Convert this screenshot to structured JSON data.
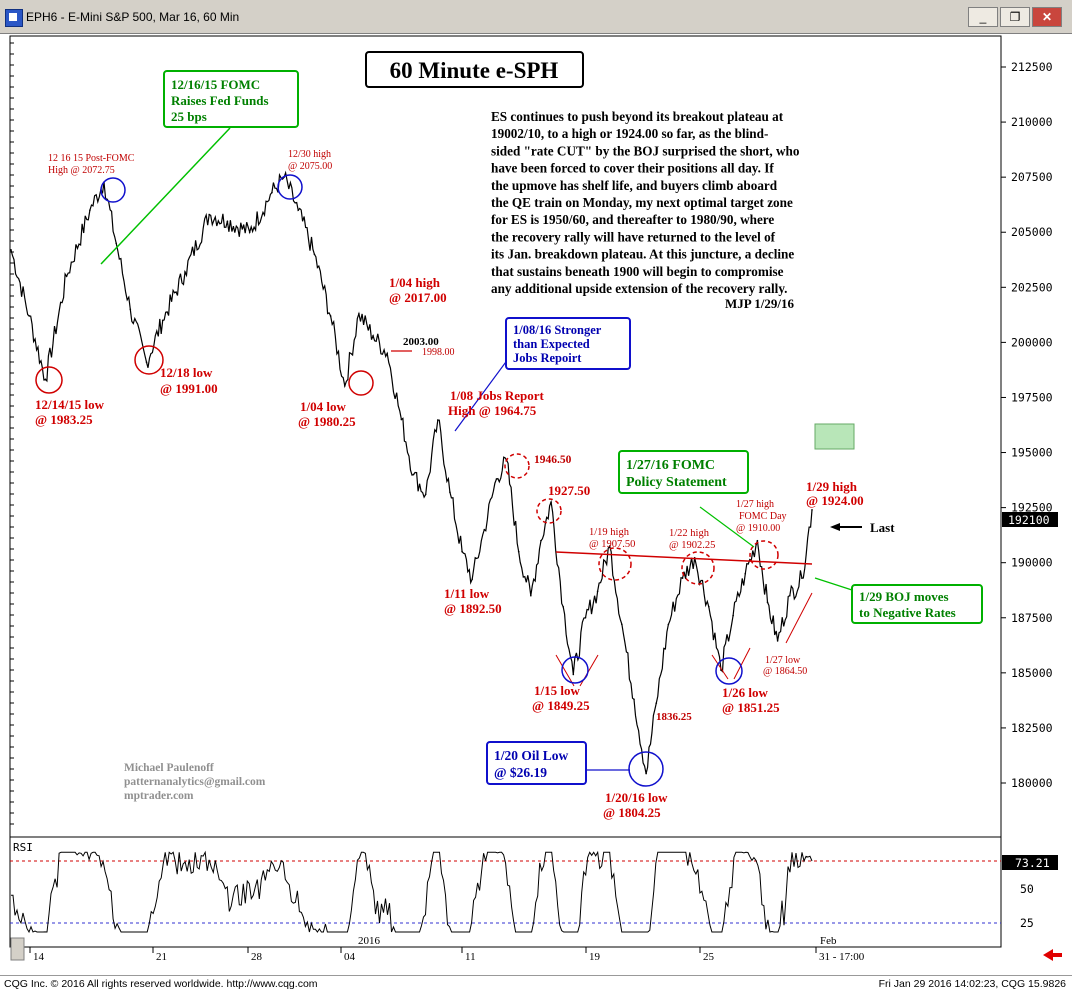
{
  "window": {
    "title": "EPH6 - E-Mini S&P 500, Mar 16, 60 Min",
    "min_symbol": "_",
    "restore_symbol": "❐",
    "close_symbol": "✕"
  },
  "chart_data": {
    "type": "line",
    "title": "60 Minute e-SPH",
    "commentary": [
      "ES continues to push beyond its breakout plateau at",
      "19002/10, to a high or 1924.00 so far, as the blind-",
      "sided \"rate CUT\" by the BOJ surprised the short, who",
      "have been forced to cover their positions all day. If",
      "the upmove has shelf life, and buyers climb aboard",
      "the QE train on Monday, my next optimal target zone",
      "for ES is 1950/60, and thereafter to 1980/90, where",
      "the recovery rally will have returned to the level of",
      "its Jan. breakdown plateau.  At this juncture, a decline",
      "that sustains beneath 1900 will begin to compromise",
      "any additional upside extension of the recovery rally."
    ],
    "signature": "MJP 1/29/16",
    "author": [
      "Michael Paulenoff",
      "patternanalytics@gmail.com",
      "mptrader.com"
    ],
    "price_axis": {
      "labels": [
        "212500",
        "210000",
        "207500",
        "205000",
        "202500",
        "200000",
        "197500",
        "195000",
        "192500",
        "190000",
        "187500",
        "185000",
        "182500",
        "180000"
      ],
      "values": [
        2125,
        2100,
        2075,
        2050,
        2025,
        2000,
        1975,
        1950,
        1925,
        1900,
        1875,
        1850,
        1825,
        1800
      ],
      "ylim": [
        1780,
        2140
      ],
      "last_price": "192100",
      "last_value": 1921
    },
    "date_axis": {
      "ticks": [
        "14",
        "21",
        "28",
        "04",
        "11",
        "19",
        "25",
        "31 - 17:00"
      ],
      "year_label": "2016",
      "month_label": "Feb"
    },
    "key_points": [
      {
        "t": 0,
        "v": 2042
      },
      {
        "t": 18,
        "v": 2012
      },
      {
        "t": 34,
        "v": 1983.25
      },
      {
        "t": 55,
        "v": 2030
      },
      {
        "t": 78,
        "v": 2060
      },
      {
        "t": 92,
        "v": 2072.75
      },
      {
        "t": 104,
        "v": 2045
      },
      {
        "t": 118,
        "v": 2015
      },
      {
        "t": 134,
        "v": 1991
      },
      {
        "t": 150,
        "v": 2010
      },
      {
        "t": 172,
        "v": 2032
      },
      {
        "t": 196,
        "v": 2058
      },
      {
        "t": 214,
        "v": 2055
      },
      {
        "t": 236,
        "v": 2050
      },
      {
        "t": 258,
        "v": 2068
      },
      {
        "t": 270,
        "v": 2075
      },
      {
        "t": 284,
        "v": 2060
      },
      {
        "t": 300,
        "v": 2040
      },
      {
        "t": 316,
        "v": 2012
      },
      {
        "t": 330,
        "v": 1980.25
      },
      {
        "t": 344,
        "v": 2013
      },
      {
        "t": 358,
        "v": 2003
      },
      {
        "t": 372,
        "v": 1995
      },
      {
        "t": 386,
        "v": 1965
      },
      {
        "t": 398,
        "v": 1940
      },
      {
        "t": 410,
        "v": 1931
      },
      {
        "t": 422,
        "v": 1964.75
      },
      {
        "t": 434,
        "v": 1932
      },
      {
        "t": 446,
        "v": 1905
      },
      {
        "t": 456,
        "v": 1892.5
      },
      {
        "t": 468,
        "v": 1915
      },
      {
        "t": 480,
        "v": 1938
      },
      {
        "t": 490,
        "v": 1946.5
      },
      {
        "t": 502,
        "v": 1905
      },
      {
        "t": 514,
        "v": 1885
      },
      {
        "t": 524,
        "v": 1910
      },
      {
        "t": 534,
        "v": 1927.5
      },
      {
        "t": 546,
        "v": 1880
      },
      {
        "t": 556,
        "v": 1849.25
      },
      {
        "t": 568,
        "v": 1875
      },
      {
        "t": 580,
        "v": 1887
      },
      {
        "t": 592,
        "v": 1907.5
      },
      {
        "t": 604,
        "v": 1872
      },
      {
        "t": 616,
        "v": 1838
      },
      {
        "t": 628,
        "v": 1804.25
      },
      {
        "t": 638,
        "v": 1836.25
      },
      {
        "t": 650,
        "v": 1872
      },
      {
        "t": 664,
        "v": 1893
      },
      {
        "t": 676,
        "v": 1902.25
      },
      {
        "t": 690,
        "v": 1880
      },
      {
        "t": 702,
        "v": 1851.25
      },
      {
        "t": 714,
        "v": 1876
      },
      {
        "t": 726,
        "v": 1895
      },
      {
        "t": 738,
        "v": 1910
      },
      {
        "t": 748,
        "v": 1882
      },
      {
        "t": 758,
        "v": 1864.5
      },
      {
        "t": 770,
        "v": 1885
      },
      {
        "t": 782,
        "v": 1893
      },
      {
        "t": 792,
        "v": 1924
      }
    ],
    "rsi": {
      "label": "RSI",
      "last": "73.21",
      "last_value": 73.21,
      "levels": [
        "50",
        "25"
      ],
      "ylim": [
        0,
        100
      ]
    },
    "annotations": {
      "fomc_dec_box": [
        "12/16/15 FOMC",
        "Raises Fed Funds",
        "25 bps"
      ],
      "post_fomc_high": [
        "12 16 15 Post-FOMC",
        "High @ 2072.75"
      ],
      "dec30_high": [
        "12/30 high",
        "@ 2075.00"
      ],
      "dec14_low": [
        "12/14/15 low",
        "@ 1983.25"
      ],
      "dec18_low": [
        "12/18 low",
        "@ 1991.00"
      ],
      "jan04_high": [
        "1/04 high",
        "@ 2017.00"
      ],
      "jan04_low": [
        "1/04 low",
        "@ 1980.25"
      ],
      "level_2003": "2003.00",
      "level_1998": "1998.00",
      "jobs_box": [
        "1/08/16 Stronger",
        "than Expected",
        "Jobs Repoirt"
      ],
      "jobs_high": [
        "1/08 Jobs Report",
        "High @ 1964.75"
      ],
      "level_1946": "1946.50",
      "level_1927": "1927.50",
      "jan11_low": [
        "1/11 low",
        "@ 1892.50"
      ],
      "jan19_high": [
        "1/19 high",
        "@ 1907.50"
      ],
      "jan22_high": [
        "1/22 high",
        "@ 1902.25"
      ],
      "jan27_high": [
        "1/27 high",
        "FOMC Day",
        "@ 1910.00"
      ],
      "fomc_jan_box": [
        "1/27/16 FOMC",
        "Policy Statement"
      ],
      "jan29_high": [
        "1/29 high",
        "@ 1924.00"
      ],
      "last_label": "Last",
      "boj_box": [
        "1/29 BOJ moves",
        "to Negative Rates"
      ],
      "jan15_low": [
        "1/15 low",
        "@ 1849.25"
      ],
      "level_1836": "1836.25",
      "jan26_low": [
        "1/26 low",
        "@ 1851.25"
      ],
      "jan27_low": [
        "1/27 low",
        "@ 1864.50"
      ],
      "oil_box": [
        "1/20 Oil Low",
        "@ $26.19"
      ],
      "jan20_low": [
        "1/20/16 low",
        "@ 1804.25"
      ]
    }
  },
  "status": {
    "left": "CQG Inc. © 2016 All rights reserved worldwide. http://www.cqg.com",
    "right": "Fri Jan 29 2016 14:02:23, CQG 15.9826"
  },
  "colors": {
    "price_line": "#000000",
    "annotation_red": "#d00000",
    "annotation_blue": "#0000cc",
    "annotation_green": "#00b000",
    "target_zone": "#b8e6b8"
  }
}
